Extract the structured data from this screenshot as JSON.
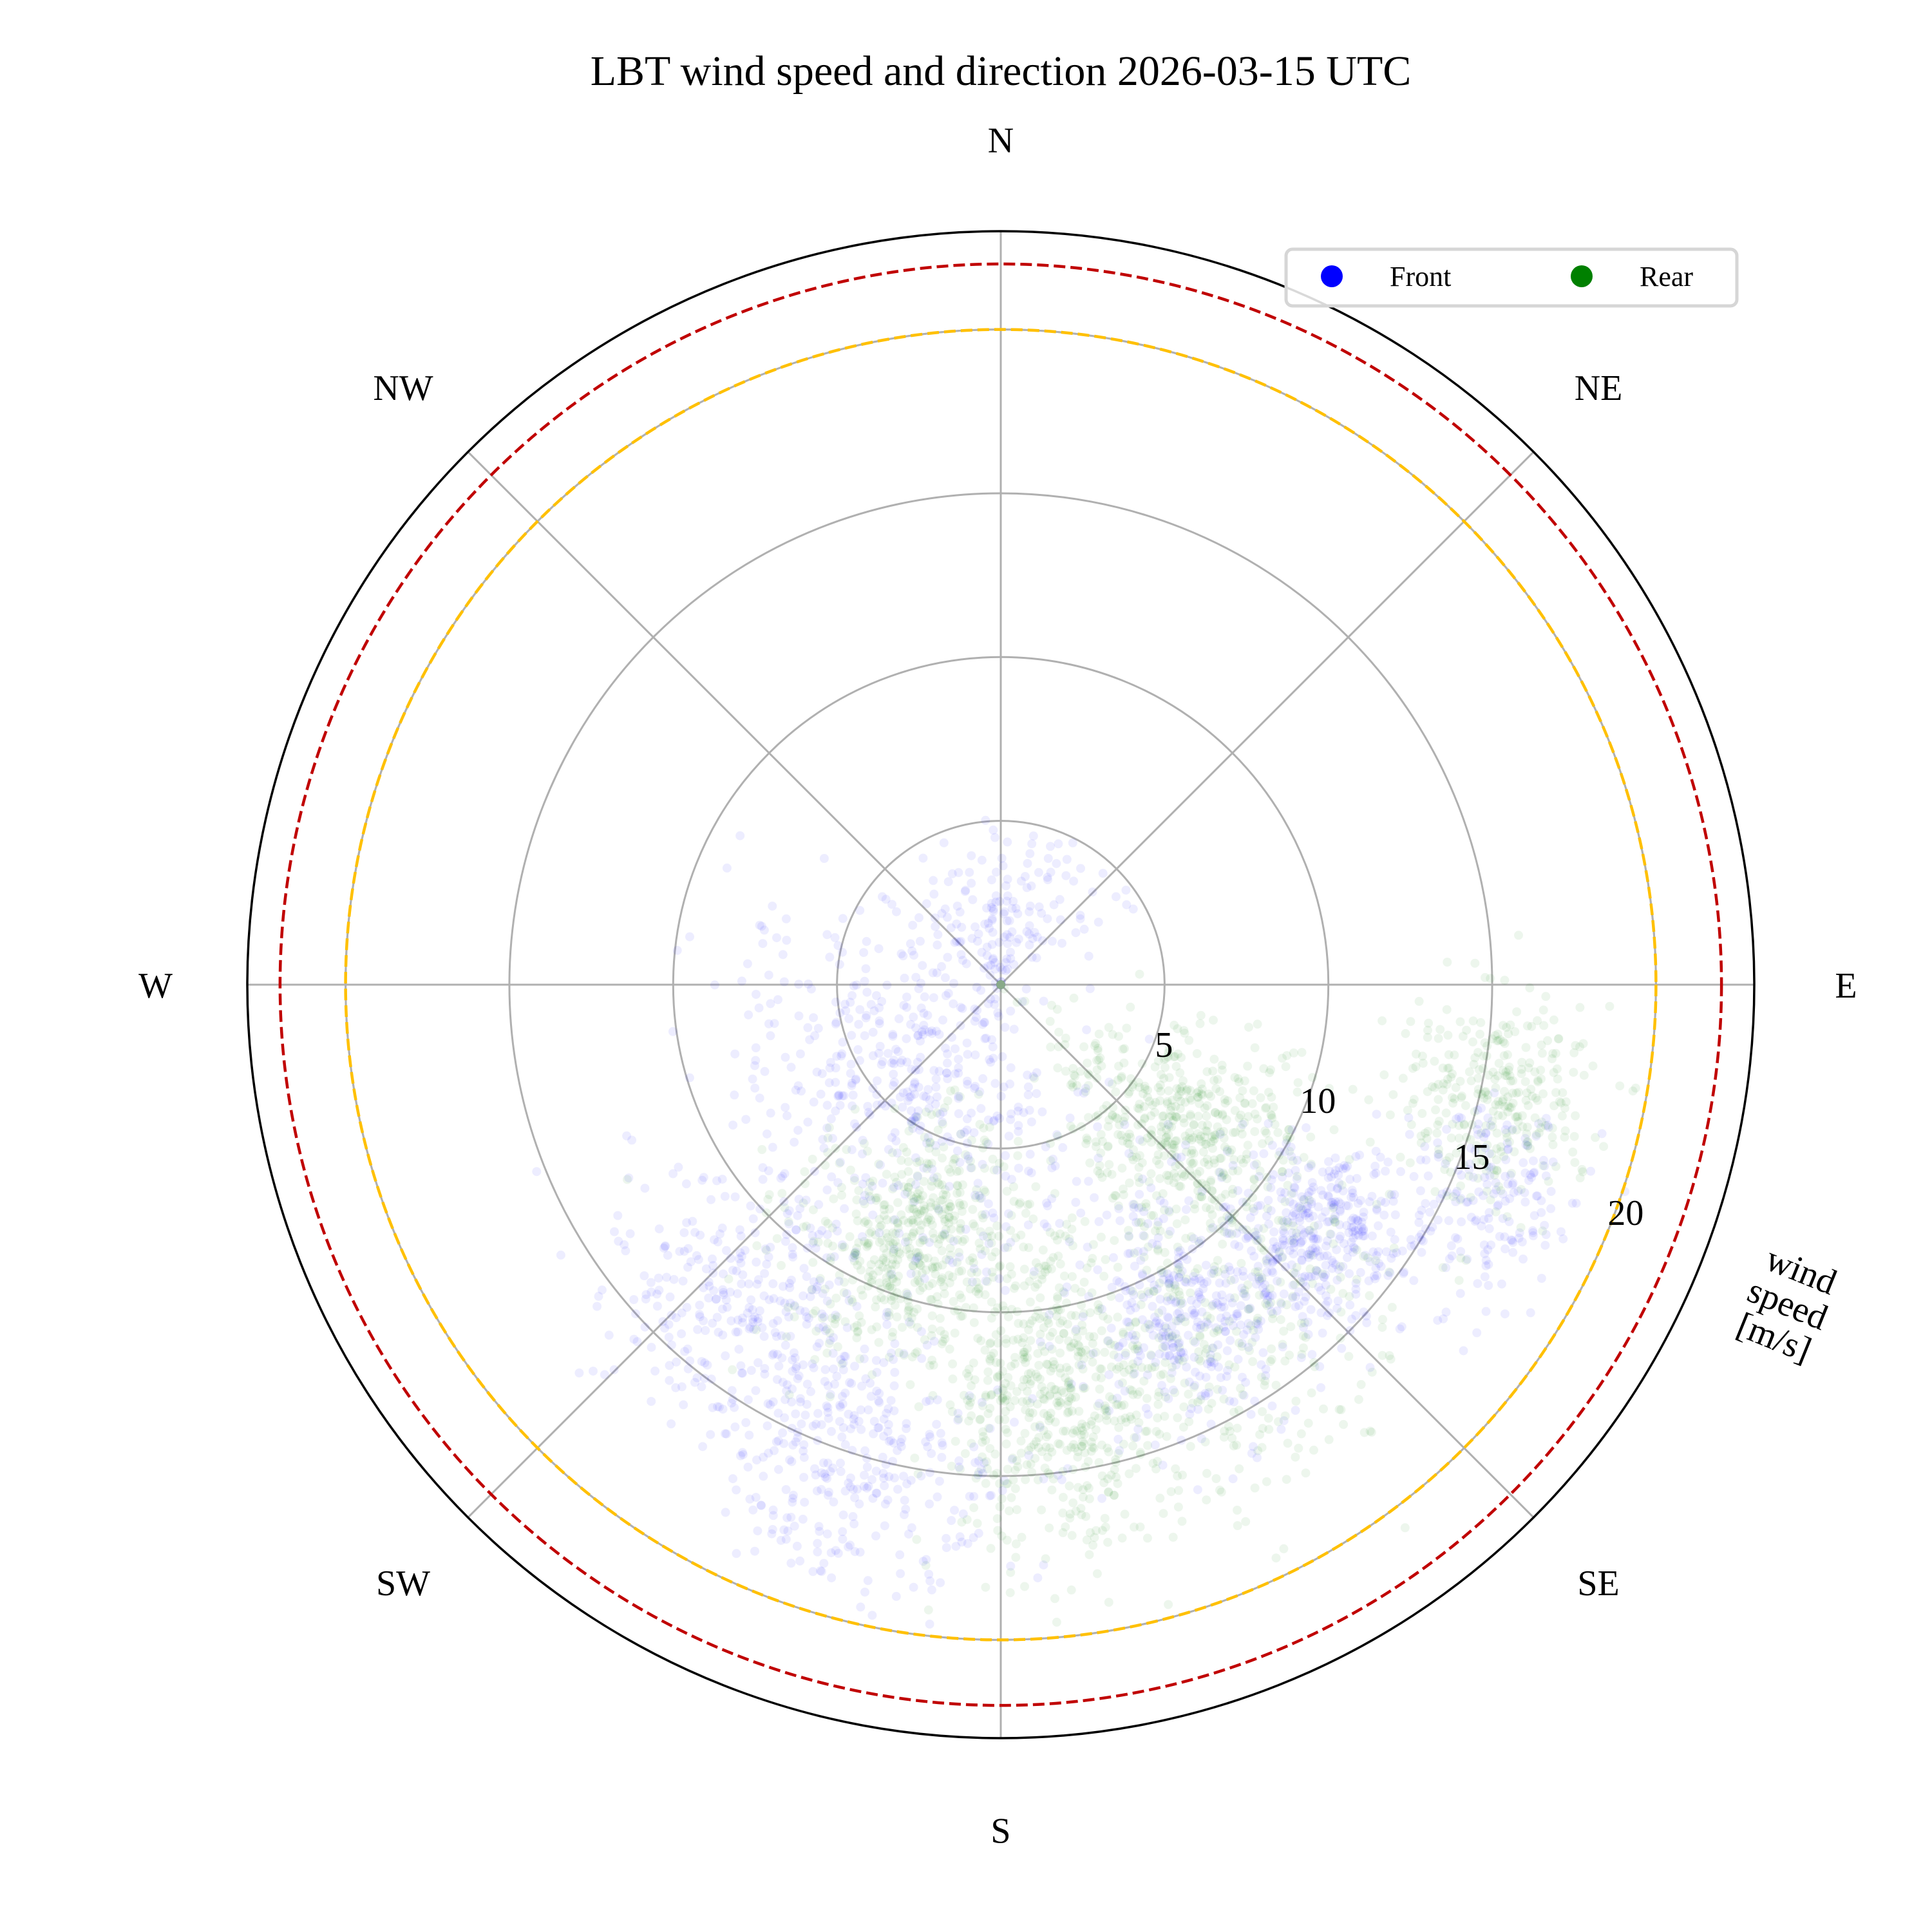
{
  "chart_data": {
    "type": "scatter",
    "subtype": "polar",
    "title": "LBT wind speed and direction 2026-03-15 UTC",
    "radial_label": "wind speed [m/s]",
    "radial_label_lines": [
      "wind",
      "speed",
      "[m/s]"
    ],
    "direction_labels": [
      "N",
      "NE",
      "E",
      "SE",
      "S",
      "SW",
      "W",
      "NW"
    ],
    "direction_convention": "compass, clockwise from N at top",
    "rlim": [
      0,
      23
    ],
    "radial_ticks": [
      5,
      10,
      15,
      20
    ],
    "radial_tick_labels": [
      "5",
      "10",
      "15",
      "20"
    ],
    "grid": true,
    "legend": {
      "placement": "top-right",
      "columns": 2
    },
    "reference_circles": [
      {
        "speed": 20,
        "color": "#ffc000",
        "style": "dashed"
      },
      {
        "speed": 22,
        "color": "#c00000",
        "style": "dashed"
      }
    ],
    "series": [
      {
        "name": "Front",
        "color": "#0000ff",
        "clusters": [
          {
            "direction_deg": 0,
            "speed": 2.5,
            "spread_deg": 40,
            "spread_speed": 1.5,
            "weight": 0.08
          },
          {
            "direction_deg": 235,
            "speed": 4.8,
            "spread_deg": 30,
            "spread_speed": 2.2,
            "weight": 0.16
          },
          {
            "direction_deg": 218,
            "speed": 12.6,
            "spread_deg": 10,
            "spread_speed": 2.0,
            "weight": 0.15
          },
          {
            "direction_deg": 197,
            "speed": 15.5,
            "spread_deg": 9,
            "spread_speed": 2.0,
            "weight": 0.14
          },
          {
            "direction_deg": 150,
            "speed": 11.9,
            "spread_deg": 8,
            "spread_speed": 1.8,
            "weight": 0.16
          },
          {
            "direction_deg": 127,
            "speed": 12.5,
            "spread_deg": 6,
            "spread_speed": 1.5,
            "weight": 0.16
          },
          {
            "direction_deg": 114,
            "speed": 16.5,
            "spread_deg": 5,
            "spread_speed": 1.3,
            "weight": 0.08
          },
          {
            "direction_deg": 180,
            "speed": 6.0,
            "spread_deg": 30,
            "spread_speed": 3.0,
            "weight": 0.07
          }
        ]
      },
      {
        "name": "Rear",
        "color": "#008000",
        "clusters": [
          {
            "direction_deg": 199,
            "speed": 8.5,
            "spread_deg": 12,
            "spread_speed": 2.0,
            "weight": 0.24
          },
          {
            "direction_deg": 172,
            "speed": 12.7,
            "spread_deg": 8,
            "spread_speed": 2.3,
            "weight": 0.26
          },
          {
            "direction_deg": 129,
            "speed": 7.2,
            "spread_deg": 12,
            "spread_speed": 2.0,
            "weight": 0.22
          },
          {
            "direction_deg": 103,
            "speed": 15.5,
            "spread_deg": 6,
            "spread_speed": 1.5,
            "weight": 0.14
          },
          {
            "direction_deg": 145,
            "speed": 13.0,
            "spread_deg": 12,
            "spread_speed": 2.5,
            "weight": 0.14
          }
        ]
      }
    ]
  }
}
